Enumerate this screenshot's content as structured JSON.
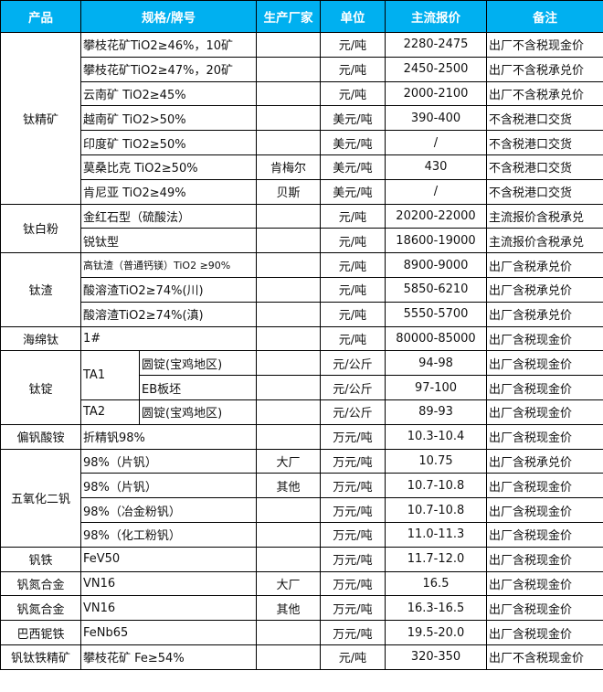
{
  "colors": {
    "header_bg": "#00B0F0",
    "header_text": "#FFFFFF",
    "grid": "#000000"
  },
  "headers": [
    "产品",
    "规格/牌号",
    "生产厂家",
    "单位",
    "主流报价",
    "备注"
  ],
  "products": [
    {
      "name": "钛精矿",
      "rows": [
        {
          "spec": "攀枝花矿TiO2≥46%，10矿",
          "maker": "",
          "unit": "元/吨",
          "price": "2280-2475",
          "note": "出厂不含税现金价"
        },
        {
          "spec": "攀枝花矿TiO2≥47%，20矿",
          "maker": "",
          "unit": "元/吨",
          "price": "2450-2500",
          "note": "出厂不含税承兑价"
        },
        {
          "spec": "云南矿 TiO2≥45%",
          "maker": "",
          "unit": "元/吨",
          "price": "2000-2100",
          "note": "出厂不含税承兑价"
        },
        {
          "spec": "越南矿 TiO2>50%",
          "maker": "",
          "unit": "美元/吨",
          "price": "390-400",
          "note": "不含税港口交货"
        },
        {
          "spec": "印度矿 TiO2≥50%",
          "maker": "",
          "unit": "美元/吨",
          "price": "/",
          "note": "不含税港口交货"
        },
        {
          "spec": "莫桑比克 TiO2≥50%",
          "maker": "肯梅尔",
          "unit": "美元/吨",
          "price": "430",
          "note": "不含税港口交货"
        },
        {
          "spec": "肯尼亚 TiO2≥49%",
          "maker": "贝斯",
          "unit": "美元/吨",
          "price": "/",
          "note": "不含税港口交货"
        }
      ]
    },
    {
      "name": "钛白粉",
      "rows": [
        {
          "spec": "金红石型（硫酸法）",
          "maker": "",
          "unit": "元/吨",
          "price": "20200-22000",
          "note": "主流报价含税承兑"
        },
        {
          "spec": "锐钛型",
          "maker": "",
          "unit": "元/吨",
          "price": "18600-19000",
          "note": "主流报价含税承兑"
        }
      ]
    },
    {
      "name": "钛渣",
      "rows": [
        {
          "spec": "高钛渣（普通钙镁）TiO2 ≥90%",
          "maker": "",
          "unit": "元/吨",
          "price": "8900-9000",
          "note": "出厂含税承兑价",
          "small": true
        },
        {
          "spec": "酸溶渣TiO2≥74%(川)",
          "maker": "",
          "unit": "元/吨",
          "price": "5850-6210",
          "note": "出厂含税承兑价"
        },
        {
          "spec": "酸溶渣TiO2≥74%(滇)",
          "maker": "",
          "unit": "元/吨",
          "price": "5550-5700",
          "note": "出厂含税承兑价"
        }
      ]
    },
    {
      "name": "海绵钛",
      "rows": [
        {
          "spec": "1#",
          "maker": "",
          "unit": "元/吨",
          "price": "80000-85000",
          "note": "出厂含税现金价"
        }
      ]
    },
    {
      "name": "钛锭",
      "grades": [
        {
          "grade": "TA1",
          "rows": [
            {
              "form": "圆锭(宝鸡地区)",
              "maker": "",
              "unit": "元/公斤",
              "price": "94-98",
              "note": "出厂含税现金价"
            },
            {
              "form": "EB板坯",
              "maker": "",
              "unit": "元/公斤",
              "price": "97-100",
              "note": "出厂含税现金价"
            }
          ]
        },
        {
          "grade": "TA2",
          "rows": [
            {
              "form": "圆锭(宝鸡地区)",
              "maker": "",
              "unit": "元/公斤",
              "price": "89-93",
              "note": "出厂含税现金价"
            }
          ]
        }
      ]
    },
    {
      "name": "偏钒酸铵",
      "rows": [
        {
          "spec": "折精钒98%",
          "maker": "",
          "unit": "万元/吨",
          "price": "10.3-10.4",
          "note": "出厂含税现金价"
        }
      ]
    },
    {
      "name": "五氧化二钒",
      "rows": [
        {
          "spec": "98%（片钒）",
          "maker": "大厂",
          "unit": "万元/吨",
          "price": "10.75",
          "note": "出厂含税承兑价"
        },
        {
          "spec": "98%（片钒）",
          "maker": "其他",
          "unit": "万元/吨",
          "price": "10.7-10.8",
          "note": "出厂含税现金价"
        },
        {
          "spec": "98%（冶金粉钒）",
          "maker": "",
          "unit": "万元/吨",
          "price": "10.7-10.8",
          "note": "出厂含税现金价"
        },
        {
          "spec": "98%（化工粉钒）",
          "maker": "",
          "unit": "万元/吨",
          "price": "11.0-11.3",
          "note": "出厂含税现金价"
        }
      ]
    },
    {
      "name": "钒铁",
      "rows": [
        {
          "spec": "FeV50",
          "maker": "",
          "unit": "万元/吨",
          "price": "11.7-12.0",
          "note": "出厂含税现金价"
        }
      ]
    },
    {
      "name": "钒氮合金",
      "rows": [
        {
          "spec": "VN16",
          "maker": "大厂",
          "unit": "万元/吨",
          "price": "16.5",
          "note": "出厂含税现金价"
        }
      ]
    },
    {
      "name": "钒氮合金",
      "rows": [
        {
          "spec": "VN16",
          "maker": "其他",
          "unit": "万元/吨",
          "price": "16.3-16.5",
          "note": "出厂含税现金价"
        }
      ]
    },
    {
      "name": "巴西铌铁",
      "rows": [
        {
          "spec": "FeNb65",
          "maker": "",
          "unit": "万元/吨",
          "price": "19.5-20.0",
          "note": "出厂含税现金价"
        }
      ]
    },
    {
      "name": "钒钛铁精矿",
      "rows": [
        {
          "spec": "攀枝花矿 Fe≥54%",
          "maker": "",
          "unit": "元/吨",
          "price": "320-350",
          "note": "出厂不含税现金价"
        }
      ]
    }
  ]
}
